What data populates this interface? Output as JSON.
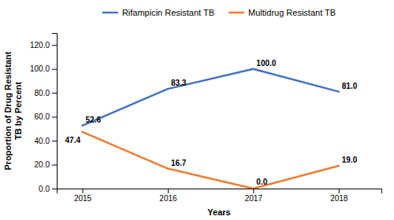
{
  "chart_data": {
    "type": "line",
    "x_label": "Years",
    "y_label": "Proportion of Drug Resistant\nTB by Percent",
    "x": [
      2015,
      2016,
      2017,
      2018
    ],
    "xlim": [
      2014.7,
      2018.5
    ],
    "xticks": [
      2015,
      2016,
      2017,
      2018
    ],
    "ylim": [
      0.0,
      130.0
    ],
    "yticks": [
      {
        "value": 0.0,
        "label": "0.0"
      },
      {
        "value": 20.0,
        "label": "20.0"
      },
      {
        "value": 40.0,
        "label": "40.0"
      },
      {
        "value": 60.0,
        "label": "60.0"
      },
      {
        "value": 80.0,
        "label": "80.0"
      },
      {
        "value": 100.0,
        "label": "100.0"
      },
      {
        "value": 120.0,
        "label": "120.0"
      }
    ],
    "grid": false,
    "legend": "top",
    "data_labels": true,
    "series": [
      {
        "name": "Rifampicin Resistant TB",
        "color": "#4472C4",
        "values": [
          52.6,
          83.3,
          100.0,
          81.0
        ],
        "value_labels": [
          "52.6",
          "83.3",
          "100.0",
          "81.0"
        ]
      },
      {
        "name": "Multidrug Resistant TB",
        "color": "#ED7D31",
        "values": [
          47.4,
          16.7,
          0.0,
          19.0
        ],
        "value_labels": [
          "47.4",
          "16.7",
          "0.0",
          "19.0"
        ]
      }
    ]
  }
}
